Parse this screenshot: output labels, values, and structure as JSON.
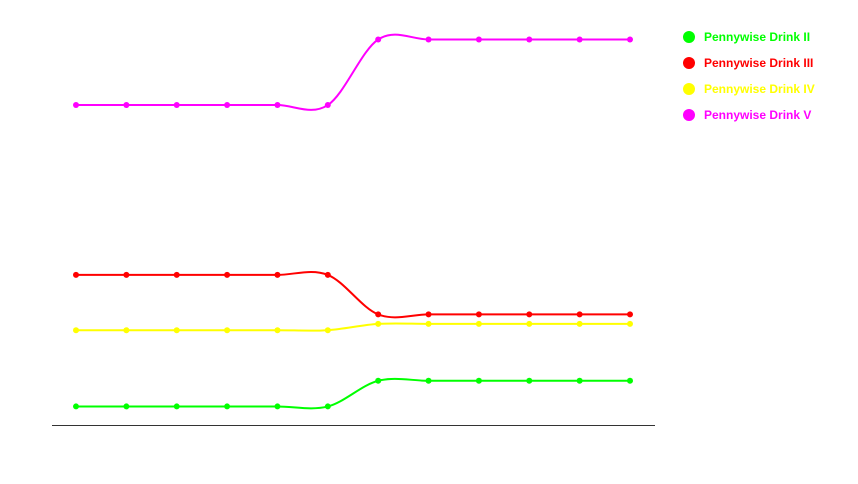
{
  "chart_data": {
    "type": "line",
    "title": "",
    "xlabel": "",
    "ylabel": "",
    "x": [
      1,
      2,
      3,
      4,
      5,
      6,
      7,
      8,
      9,
      10,
      11,
      12
    ],
    "ylim": [
      0,
      100
    ],
    "grid": false,
    "legend_position": "top-right",
    "series": [
      {
        "name": "Pennywise Drink II",
        "color": "#00ff00",
        "values": [
          4.7,
          4.7,
          4.7,
          4.7,
          4.7,
          4.7,
          11.2,
          11.2,
          11.2,
          11.2,
          11.2,
          11.2
        ]
      },
      {
        "name": "Pennywise Drink III",
        "color": "#ff0000",
        "values": [
          38.0,
          38.0,
          38.0,
          38.0,
          38.0,
          38.0,
          28.0,
          28.0,
          28.0,
          28.0,
          28.0,
          28.0
        ]
      },
      {
        "name": "Pennywise Drink IV",
        "color": "#ffff00",
        "values": [
          24.0,
          24.0,
          24.0,
          24.0,
          24.0,
          24.0,
          25.6,
          25.6,
          25.6,
          25.6,
          25.6,
          25.6
        ]
      },
      {
        "name": "Pennywise Drink V",
        "color": "#ff00ff",
        "values": [
          81.0,
          81.0,
          81.0,
          81.0,
          81.0,
          81.0,
          97.6,
          97.6,
          97.6,
          97.6,
          97.6,
          97.6
        ]
      }
    ]
  }
}
